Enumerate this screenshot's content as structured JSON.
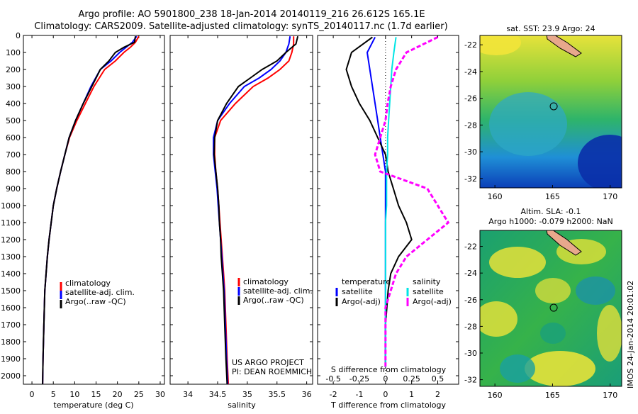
{
  "header": {
    "line1": "Argo profile: AO 5901800_238 18-Jan-2014 20140119_216 26.612S 165.1E",
    "line2": "Climatology: CARS2009. Satellite-adjusted climatology: synTS_20140117.nc (1.7d earlier)"
  },
  "colors": {
    "climatology": "#ff0000",
    "satellite": "#0000ff",
    "argo": "#000000",
    "satellite_salinity": "#00e5e5",
    "argo_salinity": "#ff00ff"
  },
  "chart_data": [
    {
      "type": "line",
      "xlabel": "temperature (deg C)",
      "xlim": [
        -2,
        31
      ],
      "xticks": [
        0,
        5,
        10,
        15,
        20,
        25,
        30
      ],
      "ylim": [
        0,
        2050
      ],
      "yticks": [
        0,
        100,
        200,
        300,
        400,
        500,
        600,
        700,
        800,
        900,
        1000,
        1100,
        1200,
        1300,
        1400,
        1500,
        1600,
        1700,
        1800,
        1900,
        2000
      ],
      "legend": [
        "climatology",
        "satellite-adj. clim.",
        "Argo(..raw -QC)"
      ],
      "series": [
        {
          "name": "climatology",
          "color": "#ff0000",
          "x": [
            25.0,
            24.2,
            23.0,
            21.5,
            19.5,
            17.0,
            14.5,
            12.5,
            10.5,
            8.8,
            7.7,
            6.7,
            5.8,
            5.0,
            4.5,
            4.0,
            3.6,
            3.3,
            3.0,
            2.8,
            2.6,
            2.5
          ],
          "y": [
            5,
            40,
            70,
            100,
            150,
            200,
            300,
            400,
            500,
            600,
            700,
            800,
            900,
            1000,
            1100,
            1200,
            1300,
            1400,
            1500,
            1700,
            1900,
            2050
          ]
        },
        {
          "name": "satellite-adj. clim.",
          "color": "#0000ff",
          "x": [
            24.5,
            23.5,
            22.0,
            20.5,
            18.5,
            16.0,
            13.8,
            12.0,
            10.2,
            8.7,
            7.7,
            6.7,
            5.8,
            5.0,
            4.5,
            4.0,
            3.6,
            3.3,
            3.0,
            2.8,
            2.6,
            2.5
          ],
          "y": [
            5,
            40,
            70,
            100,
            150,
            200,
            300,
            400,
            500,
            600,
            700,
            800,
            900,
            1000,
            1100,
            1200,
            1300,
            1400,
            1500,
            1700,
            1900,
            2050
          ]
        },
        {
          "name": "Argo(..raw -QC)",
          "color": "#000000",
          "x": [
            24.2,
            24.0,
            21.5,
            19.5,
            18.0,
            16.0,
            14.0,
            12.0,
            10.2,
            8.7,
            7.7,
            6.7,
            5.8,
            5.0,
            4.5,
            4.0,
            3.6,
            3.3,
            3.0,
            2.8,
            2.6,
            2.5
          ],
          "y": [
            5,
            40,
            70,
            100,
            150,
            200,
            300,
            400,
            500,
            600,
            700,
            800,
            900,
            1000,
            1100,
            1200,
            1300,
            1400,
            1500,
            1700,
            1900,
            2050
          ]
        }
      ]
    },
    {
      "type": "line",
      "xlabel": "salinity",
      "xlim": [
        33.7,
        36.1
      ],
      "xticks": [
        34,
        34.5,
        35,
        35.5,
        36
      ],
      "xticklabels": [
        "34",
        "34.5",
        "35",
        "35.5",
        "36"
      ],
      "ylim": [
        0,
        2050
      ],
      "legend": [
        "climatology",
        "satellite-adj. clim.",
        "Argo(..raw -QC)"
      ],
      "annotation": [
        "US ARGO PROJECT",
        "PI: DEAN ROEMMICH"
      ],
      "series": [
        {
          "name": "climatology",
          "color": "#ff0000",
          "x": [
            35.78,
            35.78,
            35.75,
            35.7,
            35.55,
            35.35,
            35.1,
            34.8,
            34.55,
            34.45,
            34.45,
            34.47,
            34.5,
            34.52,
            34.54,
            34.56,
            34.58,
            34.6,
            34.62,
            34.64,
            34.66,
            34.68
          ],
          "y": [
            5,
            50,
            100,
            150,
            200,
            250,
            300,
            400,
            500,
            600,
            700,
            800,
            900,
            1000,
            1100,
            1200,
            1300,
            1400,
            1500,
            1700,
            1900,
            2050
          ]
        },
        {
          "name": "satellite-adj. clim.",
          "color": "#0000ff",
          "x": [
            35.72,
            35.7,
            35.65,
            35.55,
            35.4,
            35.2,
            34.95,
            34.7,
            34.5,
            34.43,
            34.43,
            34.46,
            34.49,
            34.51,
            34.53,
            34.55,
            34.57,
            34.59,
            34.61,
            34.63,
            34.65,
            34.67
          ],
          "y": [
            5,
            50,
            100,
            150,
            200,
            250,
            300,
            400,
            500,
            600,
            700,
            800,
            900,
            1000,
            1100,
            1200,
            1300,
            1400,
            1500,
            1700,
            1900,
            2050
          ]
        },
        {
          "name": "Argo(..raw -QC)",
          "color": "#000000",
          "x": [
            35.85,
            35.82,
            35.65,
            35.5,
            35.25,
            35.05,
            34.85,
            34.65,
            34.5,
            34.45,
            34.44,
            34.47,
            34.5,
            34.52,
            34.53,
            34.55,
            34.56,
            34.58,
            34.6,
            34.62,
            34.64,
            34.66
          ],
          "y": [
            5,
            50,
            100,
            150,
            200,
            250,
            300,
            400,
            500,
            600,
            700,
            800,
            900,
            1000,
            1100,
            1200,
            1300,
            1400,
            1500,
            1700,
            1900,
            2050
          ]
        }
      ]
    },
    {
      "type": "line",
      "xlabel": "T difference from climatology",
      "x2label": "S difference from climatology",
      "xlim": [
        -2.6,
        2.8
      ],
      "xticks": [
        -2,
        -1,
        0,
        1,
        2
      ],
      "x2ticks": [
        -0.5,
        -0.25,
        0,
        0.25,
        0.5
      ],
      "ylim": [
        0,
        2050
      ],
      "legend_titles": [
        "temperature",
        "salinity"
      ],
      "legend": [
        "satellite",
        "Argo(-adj)",
        "satellite",
        "Argo(-adj)"
      ],
      "series": [
        {
          "name": "satellite",
          "color": "#0000ff",
          "x": [
            -0.4,
            -0.7,
            -0.6,
            -0.5,
            -0.4,
            -0.3,
            -0.2,
            -0.1,
            0,
            0,
            0,
            0,
            0,
            0,
            0,
            0,
            0,
            0,
            0,
            0
          ],
          "y": [
            10,
            100,
            200,
            300,
            400,
            500,
            600,
            700,
            800,
            900,
            1000,
            1100,
            1200,
            1300,
            1400,
            1500,
            1600,
            1700,
            1800,
            1950
          ]
        },
        {
          "name": "Argo(-adj)",
          "color": "#000000",
          "x": [
            -0.5,
            -1.3,
            -1.5,
            -1.3,
            -1.0,
            -0.6,
            -0.3,
            0,
            0.1,
            0.3,
            0.5,
            0.8,
            1.0,
            0.5,
            0.2,
            0.1,
            0.05,
            0,
            0,
            0
          ],
          "y": [
            10,
            100,
            200,
            300,
            400,
            500,
            600,
            700,
            800,
            900,
            1000,
            1100,
            1200,
            1300,
            1400,
            1500,
            1600,
            1700,
            1800,
            1950
          ]
        },
        {
          "name": "satellite",
          "color": "#00e5e5",
          "x": [
            0.1,
            0.08,
            0.06,
            0.05,
            0.04,
            0.03,
            0.02,
            0.02,
            0.01,
            0.01,
            0.01,
            0,
            0,
            0,
            0,
            0,
            0,
            0,
            0,
            0
          ],
          "y": [
            10,
            100,
            200,
            300,
            400,
            500,
            600,
            700,
            800,
            900,
            1000,
            1100,
            1200,
            1300,
            1400,
            1500,
            1600,
            1700,
            1800,
            1950
          ]
        },
        {
          "name": "Argo(-adj)",
          "color": "#ff00ff",
          "x": [
            0.5,
            0.2,
            0.1,
            0.05,
            0.02,
            0,
            -0.05,
            -0.1,
            -0.05,
            0.4,
            0.5,
            0.6,
            0.4,
            0.2,
            0.1,
            0.05,
            0,
            0,
            0,
            0
          ],
          "y": [
            10,
            100,
            200,
            300,
            400,
            500,
            600,
            700,
            800,
            900,
            1000,
            1100,
            1200,
            1300,
            1400,
            1500,
            1600,
            1700,
            1800,
            1950
          ]
        }
      ]
    },
    {
      "type": "heatmap",
      "title": "sat. SST: 23.9 Argo: 24",
      "xticks": [
        160,
        165,
        170
      ],
      "yticks": [
        -22,
        -24,
        -26,
        -28,
        -30,
        -32
      ],
      "argo_location": [
        165.1,
        -26.6
      ]
    },
    {
      "type": "heatmap",
      "title": [
        "Altim. SLA: -0.1",
        "Argo h1000: -0.079 h2000: NaN"
      ],
      "xticks": [
        160,
        165,
        170
      ],
      "yticks": [
        -22,
        -24,
        -26,
        -28,
        -30,
        -32
      ],
      "argo_location": [
        165.1,
        -26.6
      ]
    }
  ],
  "credit": "IMOS 24-Jan-2014 20:01:02"
}
